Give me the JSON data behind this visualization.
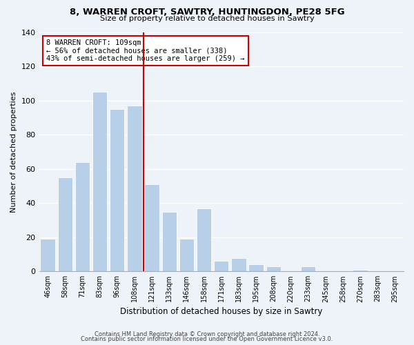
{
  "title1": "8, WARREN CROFT, SAWTRY, HUNTINGDON, PE28 5FG",
  "title2": "Size of property relative to detached houses in Sawtry",
  "xlabel": "Distribution of detached houses by size in Sawtry",
  "ylabel": "Number of detached properties",
  "bar_color": "#b8cfe8",
  "categories": [
    "46sqm",
    "58sqm",
    "71sqm",
    "83sqm",
    "96sqm",
    "108sqm",
    "121sqm",
    "133sqm",
    "146sqm",
    "158sqm",
    "171sqm",
    "183sqm",
    "195sqm",
    "208sqm",
    "220sqm",
    "233sqm",
    "245sqm",
    "258sqm",
    "270sqm",
    "283sqm",
    "295sqm"
  ],
  "values": [
    19,
    55,
    64,
    105,
    95,
    97,
    51,
    35,
    19,
    37,
    6,
    8,
    4,
    3,
    0,
    3,
    0,
    0,
    1,
    0,
    0
  ],
  "vline_x": 5.5,
  "vline_color": "#cc0000",
  "annotation_line1": "8 WARREN CROFT: 109sqm",
  "annotation_line2": "← 56% of detached houses are smaller (338)",
  "annotation_line3": "43% of semi-detached houses are larger (259) →",
  "annotation_box_color": "#ffffff",
  "annotation_box_edge": "#cc0000",
  "ylim": [
    0,
    140
  ],
  "yticks": [
    0,
    20,
    40,
    60,
    80,
    100,
    120,
    140
  ],
  "footer1": "Contains HM Land Registry data © Crown copyright and database right 2024.",
  "footer2": "Contains public sector information licensed under the Open Government Licence v3.0.",
  "background_color": "#eef2f9"
}
